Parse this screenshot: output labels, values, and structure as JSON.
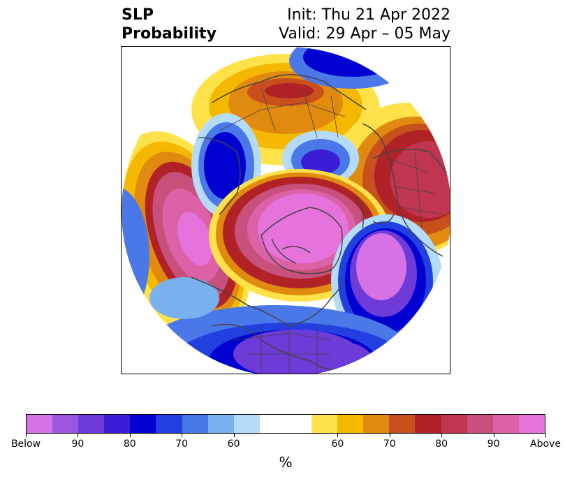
{
  "title": {
    "left_line1": "SLP",
    "left_line2": "Probability",
    "right_line1": "Init: Thu 21 Apr 2022",
    "right_line2": "Valid: 29 Apr – 05 May"
  },
  "colorbar": {
    "colors": [
      "#d672e6",
      "#9b57e0",
      "#6e3ad8",
      "#3a1ed6",
      "#0000d0",
      "#2240e0",
      "#4a78e8",
      "#78b0f0",
      "#b4dcfa",
      "#ffffff",
      "#ffe24a",
      "#f5b800",
      "#e08a10",
      "#c8501c",
      "#b02226",
      "#c03650",
      "#c8507c",
      "#dc62a8",
      "#e672dc"
    ],
    "tick_labels": [
      "Below",
      "90",
      "80",
      "70",
      "60",
      "60",
      "70",
      "80",
      "90",
      "Above"
    ],
    "unit": "%"
  },
  "map": {
    "color_keys": {
      "above_max": "#e672dc",
      "above_high": "#c8507c",
      "above_mid": "#b02226",
      "above_low": "#e08a10",
      "above_min": "#ffe24a",
      "below_max": "#d672e6",
      "below_high": "#6e3ad8",
      "below_mid": "#0000d0",
      "below_low": "#4a78e8",
      "below_min": "#b4dcfa"
    }
  }
}
